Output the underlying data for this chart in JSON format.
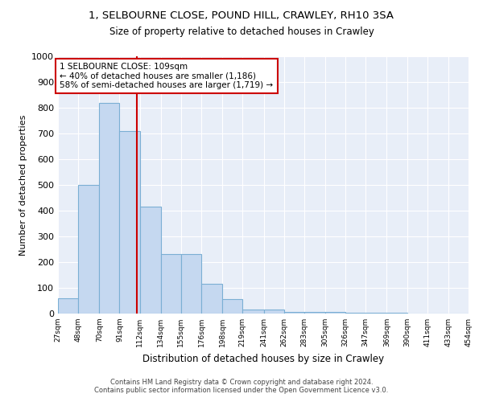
{
  "title_line1": "1, SELBOURNE CLOSE, POUND HILL, CRAWLEY, RH10 3SA",
  "title_line2": "Size of property relative to detached houses in Crawley",
  "xlabel": "Distribution of detached houses by size in Crawley",
  "ylabel": "Number of detached properties",
  "bin_edges": [
    27,
    48,
    70,
    91,
    112,
    134,
    155,
    176,
    198,
    219,
    241,
    262,
    283,
    305,
    326,
    347,
    369,
    390,
    411,
    433,
    454
  ],
  "bar_heights": [
    60,
    500,
    820,
    710,
    415,
    230,
    230,
    115,
    55,
    15,
    15,
    5,
    5,
    5,
    3,
    3,
    3,
    0,
    0,
    0
  ],
  "bar_color": "#c5d8f0",
  "bar_edge_color": "#7bafd4",
  "property_sqm": 109,
  "vline_color": "#cc0000",
  "annotation_text": "1 SELBOURNE CLOSE: 109sqm\n← 40% of detached houses are smaller (1,186)\n58% of semi-detached houses are larger (1,719) →",
  "annotation_box_color": "#ffffff",
  "annotation_box_edge": "#cc0000",
  "ylim": [
    0,
    1000
  ],
  "yticks": [
    0,
    100,
    200,
    300,
    400,
    500,
    600,
    700,
    800,
    900,
    1000
  ],
  "bg_color": "#e8eef8",
  "footer_text": "Contains HM Land Registry data © Crown copyright and database right 2024.\nContains public sector information licensed under the Open Government Licence v3.0.",
  "tick_labels": [
    "27sqm",
    "48sqm",
    "70sqm",
    "91sqm",
    "112sqm",
    "134sqm",
    "155sqm",
    "176sqm",
    "198sqm",
    "219sqm",
    "241sqm",
    "262sqm",
    "283sqm",
    "305sqm",
    "326sqm",
    "347sqm",
    "369sqm",
    "390sqm",
    "411sqm",
    "433sqm",
    "454sqm"
  ]
}
